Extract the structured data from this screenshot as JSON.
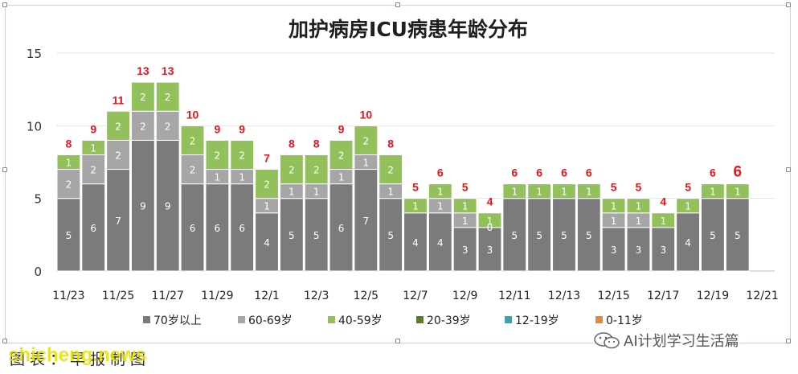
{
  "chart_data": {
    "type": "bar",
    "stacked": true,
    "title": "加护病房ICU病患年龄分布",
    "x": [
      "11/23",
      "11/24",
      "11/25",
      "11/26",
      "11/27",
      "11/28",
      "11/29",
      "11/30",
      "12/1",
      "12/2",
      "12/3",
      "12/4",
      "12/5",
      "12/6",
      "12/7",
      "12/8",
      "12/9",
      "12/10",
      "12/11",
      "12/12",
      "12/13",
      "12/14",
      "12/15",
      "12/16",
      "12/17",
      "12/18",
      "12/19",
      "12/20",
      "12/21"
    ],
    "xtick_labels": [
      "11/23",
      "11/25",
      "11/27",
      "11/29",
      "12/1",
      "12/3",
      "12/5",
      "12/7",
      "12/9",
      "12/11",
      "12/13",
      "12/15",
      "12/17",
      "12/19",
      "12/21"
    ],
    "series": [
      {
        "name": "70岁以上",
        "color": "#7b7b7b",
        "values": [
          5,
          6,
          7,
          9,
          9,
          6,
          6,
          6,
          4,
          5,
          5,
          6,
          7,
          5,
          4,
          4,
          3,
          3,
          5,
          5,
          5,
          5,
          3,
          3,
          3,
          4,
          5,
          5,
          null
        ]
      },
      {
        "name": "60-69岁",
        "color": "#a6a6a6",
        "values": [
          2,
          2,
          2,
          2,
          2,
          2,
          1,
          1,
          1,
          1,
          1,
          1,
          1,
          1,
          0,
          1,
          1,
          0,
          0,
          0,
          0,
          0,
          1,
          1,
          0,
          0,
          0,
          0,
          null
        ]
      },
      {
        "name": "40-59岁",
        "color": "#92c05a",
        "values": [
          1,
          1,
          2,
          2,
          2,
          2,
          2,
          2,
          2,
          2,
          2,
          2,
          2,
          2,
          1,
          1,
          1,
          1,
          1,
          1,
          1,
          1,
          1,
          1,
          1,
          1,
          1,
          1,
          null
        ]
      },
      {
        "name": "20-39岁",
        "color": "#5c7a2a",
        "values": [
          0,
          0,
          0,
          0,
          0,
          0,
          0,
          0,
          0,
          0,
          0,
          0,
          0,
          0,
          0,
          0,
          0,
          0,
          0,
          0,
          0,
          0,
          0,
          0,
          0,
          0,
          0,
          0,
          null
        ]
      },
      {
        "name": "12-19岁",
        "color": "#3fa0b0",
        "values": [
          0,
          0,
          0,
          0,
          0,
          0,
          0,
          0,
          0,
          0,
          0,
          0,
          0,
          0,
          0,
          0,
          0,
          0,
          0,
          0,
          0,
          0,
          0,
          0,
          0,
          0,
          0,
          0,
          null
        ]
      },
      {
        "name": "0-11岁",
        "color": "#e08a3c",
        "values": [
          0,
          0,
          0,
          0,
          0,
          0,
          0,
          0,
          0,
          0,
          0,
          0,
          0,
          0,
          0,
          0,
          0,
          0,
          0,
          0,
          0,
          0,
          0,
          0,
          0,
          0,
          0,
          0,
          null
        ]
      }
    ],
    "segment_labels": [
      [
        "5",
        "2",
        "1"
      ],
      [
        "6",
        "2",
        "1"
      ],
      [
        "7",
        "2",
        "2"
      ],
      [
        "9",
        "2",
        "2"
      ],
      [
        "9",
        "2",
        "2"
      ],
      [
        "6",
        "2",
        "2"
      ],
      [
        "6",
        "1",
        "2"
      ],
      [
        "6",
        "1",
        "2"
      ],
      [
        "4",
        "1",
        "2"
      ],
      [
        "5",
        "1",
        "2"
      ],
      [
        "5",
        "1",
        "2"
      ],
      [
        "6",
        "1",
        "2"
      ],
      [
        "7",
        "1",
        "2"
      ],
      [
        "5",
        "1",
        "2"
      ],
      [
        "4",
        "",
        "1"
      ],
      [
        "4",
        "1",
        "1"
      ],
      [
        "3",
        "1",
        "1"
      ],
      [
        "3",
        "0",
        "1"
      ],
      [
        "5",
        "",
        "1"
      ],
      [
        "5",
        "",
        "1"
      ],
      [
        "5",
        "",
        "1"
      ],
      [
        "5",
        "",
        "1"
      ],
      [
        "3",
        "1",
        "1"
      ],
      [
        "3",
        "1",
        "1"
      ],
      [
        "3",
        "",
        "1"
      ],
      [
        "4",
        "",
        "1"
      ],
      [
        "5",
        "",
        "1"
      ],
      [
        "5",
        "",
        "1"
      ],
      [
        "",
        "",
        ""
      ]
    ],
    "totals": [
      "8",
      "9",
      "11",
      "13",
      "13",
      "10",
      "9",
      "9",
      "7",
      "8",
      "8",
      "9",
      "10",
      "8",
      "5",
      "6",
      "5",
      "4",
      "6",
      "6",
      "6",
      "6",
      "5",
      "5",
      "4",
      "5",
      "6",
      "6",
      ""
    ],
    "totals_color": "#e8141b",
    "ylim": [
      0,
      15
    ],
    "yticks": [
      "0",
      "5",
      "10",
      "15"
    ],
    "grid": true,
    "legend_position": "bottom",
    "xlabel": "",
    "ylabel": ""
  },
  "caption": "图表：早报制图",
  "watermark": "shicheng.news",
  "wechat": "AI计划学习生活篇"
}
